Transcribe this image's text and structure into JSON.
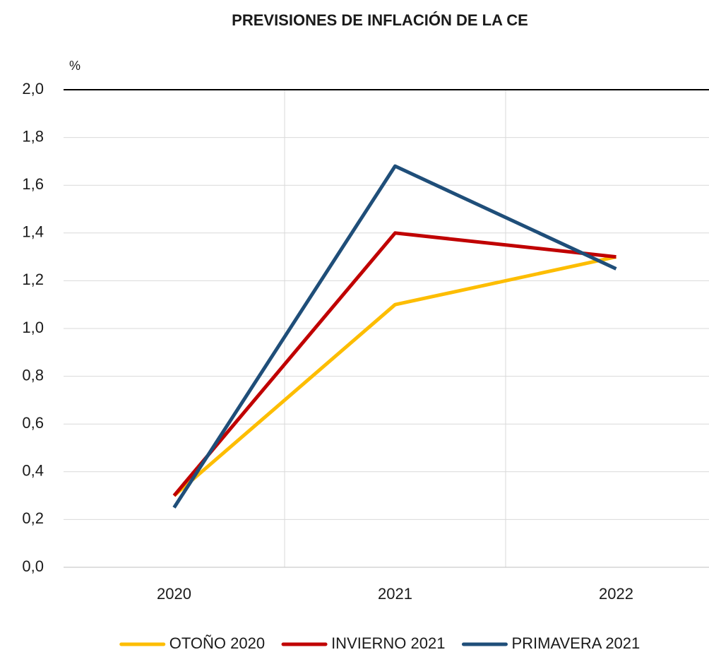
{
  "chart_data": {
    "type": "line",
    "title": "PREVISIONES DE INFLACIÓN DE LA CE",
    "y_label": "%",
    "categories": [
      "2020",
      "2021",
      "2022"
    ],
    "series": [
      {
        "name": "OTOÑO 2020",
        "color": "#fdbd00",
        "values": [
          0.3,
          1.1,
          1.3
        ]
      },
      {
        "name": "INVIERNO 2021",
        "color": "#c00000",
        "values": [
          0.3,
          1.4,
          1.3
        ]
      },
      {
        "name": "PRIMAVERA 2021",
        "color": "#1f4e79",
        "values": [
          0.25,
          1.68,
          1.25
        ]
      }
    ],
    "ylim": [
      0,
      2
    ],
    "yticks": [
      {
        "value": 0,
        "label": "0,0"
      },
      {
        "value": 0.2,
        "label": "0,2"
      },
      {
        "value": 0.4,
        "label": "0,4"
      },
      {
        "value": 0.6,
        "label": "0,6"
      },
      {
        "value": 0.8,
        "label": "0,8"
      },
      {
        "value": 1,
        "label": "1,0"
      },
      {
        "value": 1.2,
        "label": "1,2"
      },
      {
        "value": 1.4,
        "label": "1,4"
      },
      {
        "value": 1.6,
        "label": "1,6"
      },
      {
        "value": 1.8,
        "label": "1,8"
      },
      {
        "value": 2,
        "label": "2,0"
      }
    ],
    "grid": true,
    "legend": "bottom"
  }
}
